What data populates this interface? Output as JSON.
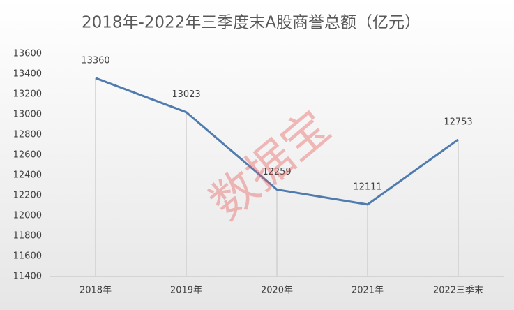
{
  "chart_data": {
    "type": "line",
    "title": "2018年-2022年三季度末A股商誉总额（亿元）",
    "categories": [
      "2018年",
      "2019年",
      "2020年",
      "2021年",
      "2022三季末"
    ],
    "series": [
      {
        "name": "A股商誉总额",
        "color": "#4f7bae",
        "values": [
          13360,
          13023,
          12259,
          12111,
          12753
        ]
      }
    ],
    "ylim": [
      11400,
      13600
    ],
    "yticks": [
      11400,
      11600,
      11800,
      12000,
      12200,
      12400,
      12600,
      12800,
      13000,
      13200,
      13400,
      13600
    ],
    "grid": false,
    "data_labels": true,
    "drop_lines": true,
    "watermark": "数据宝"
  }
}
